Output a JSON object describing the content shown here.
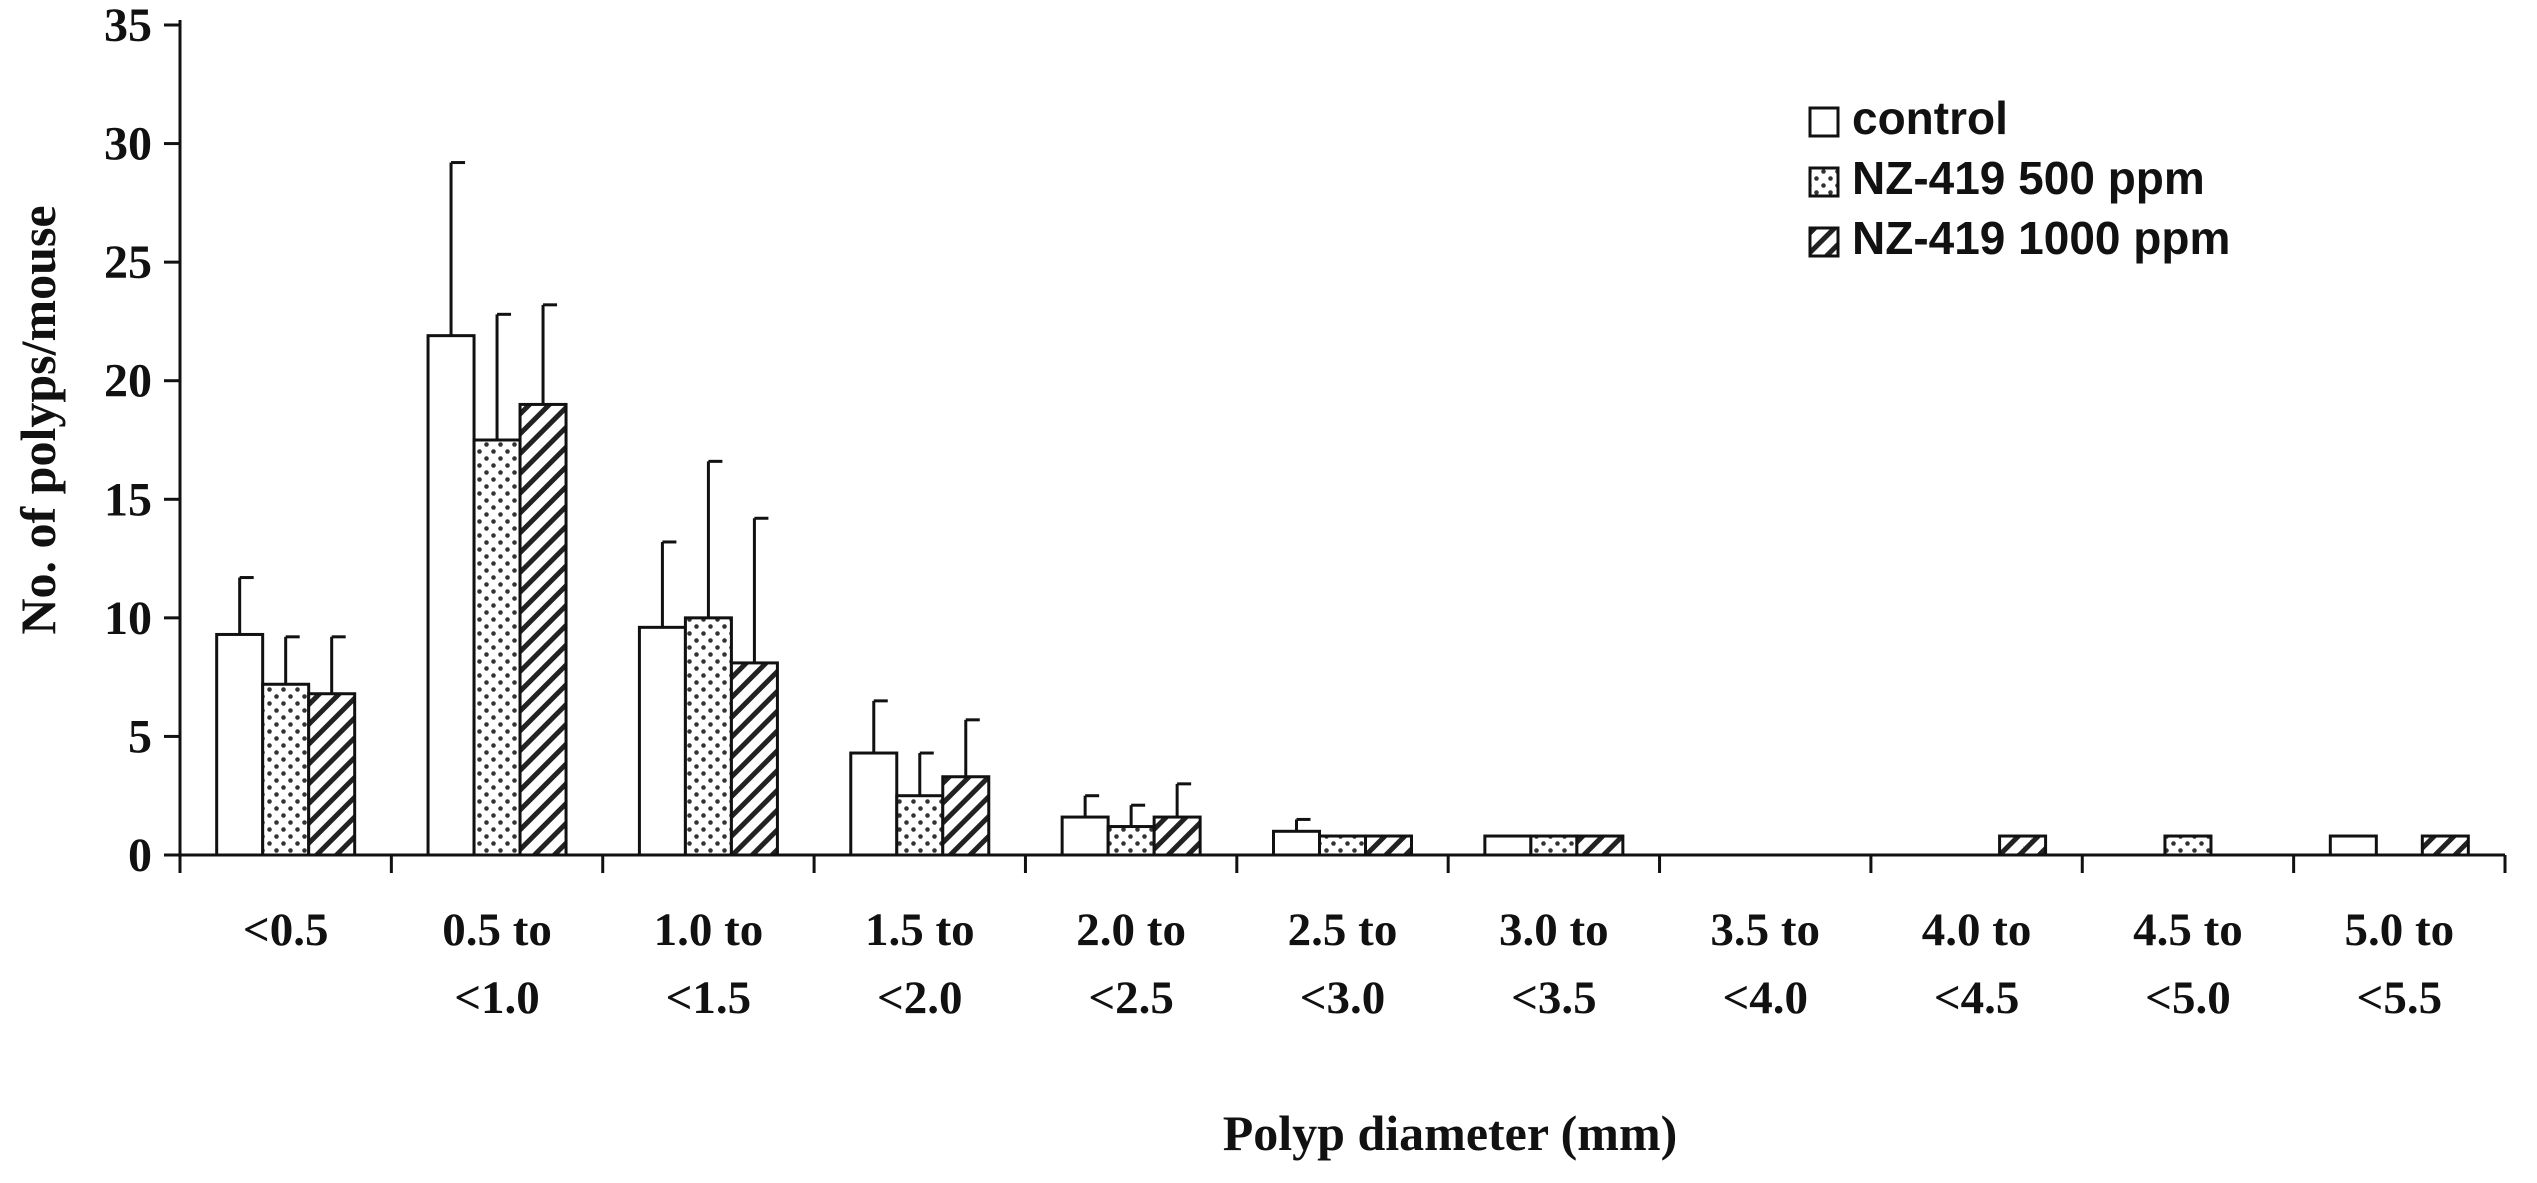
{
  "chart_data": {
    "type": "bar",
    "xlabel": "Polyp diameter (mm)",
    "ylabel": "No. of polyps/mouse",
    "ylim": [
      0,
      35
    ],
    "yticks": [
      0,
      5,
      10,
      15,
      20,
      25,
      30,
      35
    ],
    "grid": false,
    "legend_position": "top-right",
    "categories": [
      [
        "<0.5"
      ],
      [
        "0.5 to",
        "<1.0"
      ],
      [
        "1.0 to",
        "<1.5"
      ],
      [
        "1.5 to",
        "<2.0"
      ],
      [
        "2.0 to",
        "<2.5"
      ],
      [
        "2.5 to",
        "<3.0"
      ],
      [
        "3.0 to",
        "<3.5"
      ],
      [
        "3.5 to",
        "<4.0"
      ],
      [
        "4.0 to",
        "<4.5"
      ],
      [
        "4.5 to",
        "<5.0"
      ],
      [
        "5.0 to",
        "<5.5"
      ]
    ],
    "series": [
      {
        "name": "control",
        "pattern": "plain",
        "values": [
          9.3,
          21.9,
          9.6,
          4.3,
          1.6,
          1.0,
          0.8,
          0,
          0,
          0,
          0.8
        ],
        "errors": [
          2.4,
          7.3,
          3.6,
          2.2,
          0.9,
          0.5,
          0,
          0,
          0,
          0,
          0
        ]
      },
      {
        "name": "NZ-419 500 ppm",
        "pattern": "dots",
        "values": [
          7.2,
          17.5,
          10.0,
          2.5,
          1.2,
          0.8,
          0.8,
          0,
          0,
          0.8,
          0
        ],
        "errors": [
          2.0,
          5.3,
          6.6,
          1.8,
          0.9,
          0,
          0,
          0,
          0,
          0,
          0
        ]
      },
      {
        "name": "NZ-419 1000 ppm",
        "pattern": "hatch",
        "values": [
          6.8,
          19.0,
          8.1,
          3.3,
          1.6,
          0.8,
          0.8,
          0,
          0.8,
          0,
          0.8
        ],
        "errors": [
          2.4,
          4.2,
          6.1,
          2.4,
          1.4,
          0,
          0,
          0,
          0,
          0,
          0
        ]
      }
    ],
    "colors": {
      "stroke": "#111111",
      "fill": "#ffffff"
    }
  }
}
